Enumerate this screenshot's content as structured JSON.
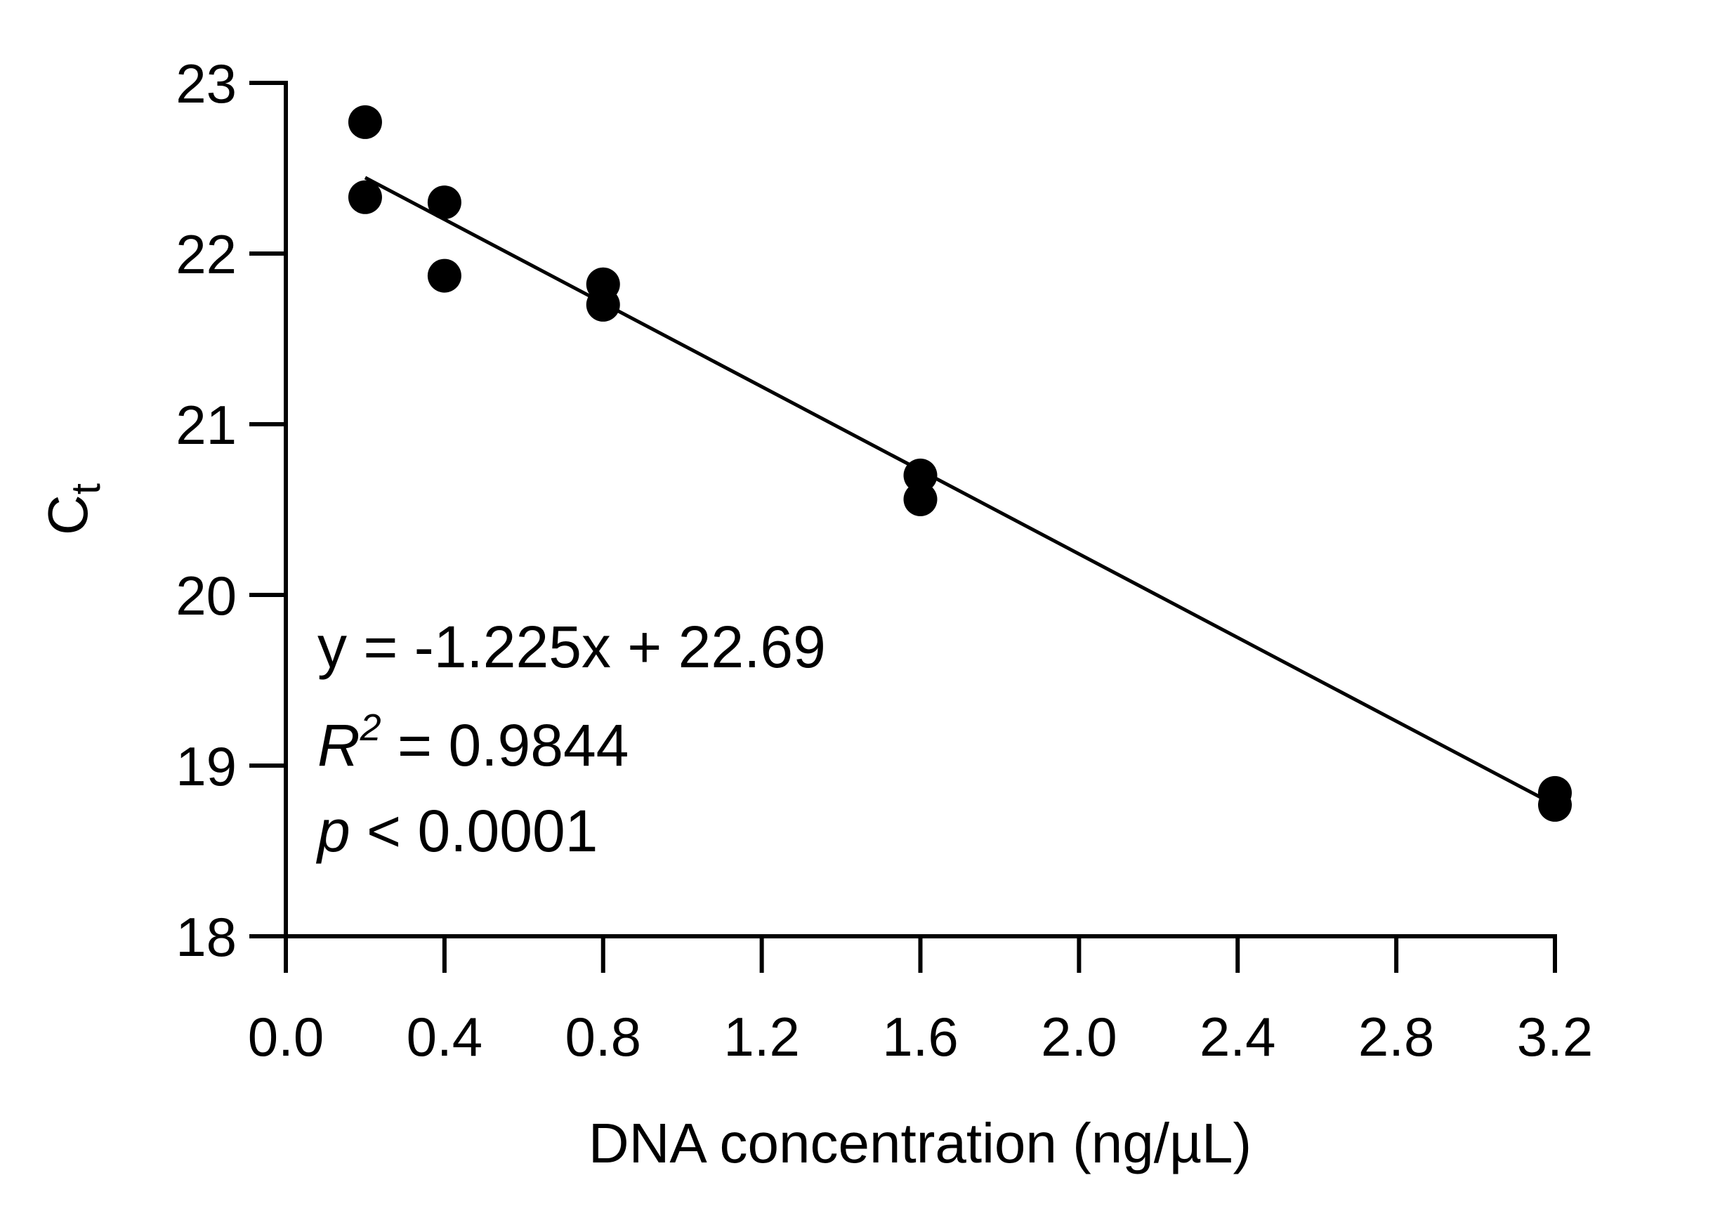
{
  "chart_data": {
    "type": "scatter",
    "xlabel": "DNA concentration (ng/µL)",
    "ylabel": {
      "main": "C",
      "sub": "t"
    },
    "xlim": [
      0.0,
      3.2
    ],
    "ylim": [
      18,
      23
    ],
    "x_ticks": [
      "0.0",
      "0.4",
      "0.8",
      "1.2",
      "1.6",
      "2.0",
      "2.4",
      "2.8",
      "3.2"
    ],
    "y_ticks": [
      "18",
      "19",
      "20",
      "21",
      "22",
      "23"
    ],
    "grid": false,
    "legend": "none",
    "points": [
      {
        "x": 0.2,
        "y": 22.77
      },
      {
        "x": 0.2,
        "y": 22.33
      },
      {
        "x": 0.4,
        "y": 22.3
      },
      {
        "x": 0.4,
        "y": 21.87
      },
      {
        "x": 0.8,
        "y": 21.82
      },
      {
        "x": 0.8,
        "y": 21.7
      },
      {
        "x": 1.6,
        "y": 20.7
      },
      {
        "x": 1.6,
        "y": 20.56
      },
      {
        "x": 3.2,
        "y": 18.84
      },
      {
        "x": 3.2,
        "y": 18.77
      }
    ],
    "fit": {
      "slope": -1.225,
      "intercept": 22.69,
      "x_range": [
        0.2,
        3.2
      ],
      "equation": "y = -1.225x + 22.69",
      "r2_label": "R",
      "r2_exp": "2",
      "r2_value": " = 0.9844",
      "p_label": "p",
      "p_value": " < 0.0001"
    },
    "colors": {
      "marks": "#000000",
      "background": "#ffffff"
    }
  }
}
